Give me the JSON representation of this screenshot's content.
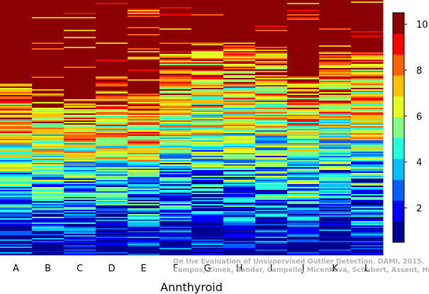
{
  "chart_data": {
    "type": "heatmap",
    "xlabel": "Annthyroid",
    "categories": [
      "A",
      "B",
      "C",
      "D",
      "E",
      "F",
      "G",
      "H",
      "I",
      "J",
      "K",
      "L"
    ],
    "colorbar": {
      "range": [
        0.5,
        10.5
      ],
      "ticks": [
        2,
        4,
        6,
        8,
        10
      ],
      "tick_labels": [
        "2",
        "4",
        "6",
        "8",
        "10"
      ],
      "colors": [
        "#00008f",
        "#0000ff",
        "#0060ff",
        "#00c0ff",
        "#20ffdf",
        "#80ff80",
        "#dfff20",
        "#ffc000",
        "#ff6000",
        "#ff0000",
        "#8b0000"
      ]
    },
    "rows": 180,
    "dominant_color_top": "#800000",
    "dominant_color_bottom": "#0000cc"
  },
  "watermark": {
    "line1": "On the Evaluation of Unsupervised Outlier Detection. DAMI, 2015.",
    "line2": "Campos, Zimek, Sander, Campello, Micenková, Schubert, Assent, Houle"
  }
}
